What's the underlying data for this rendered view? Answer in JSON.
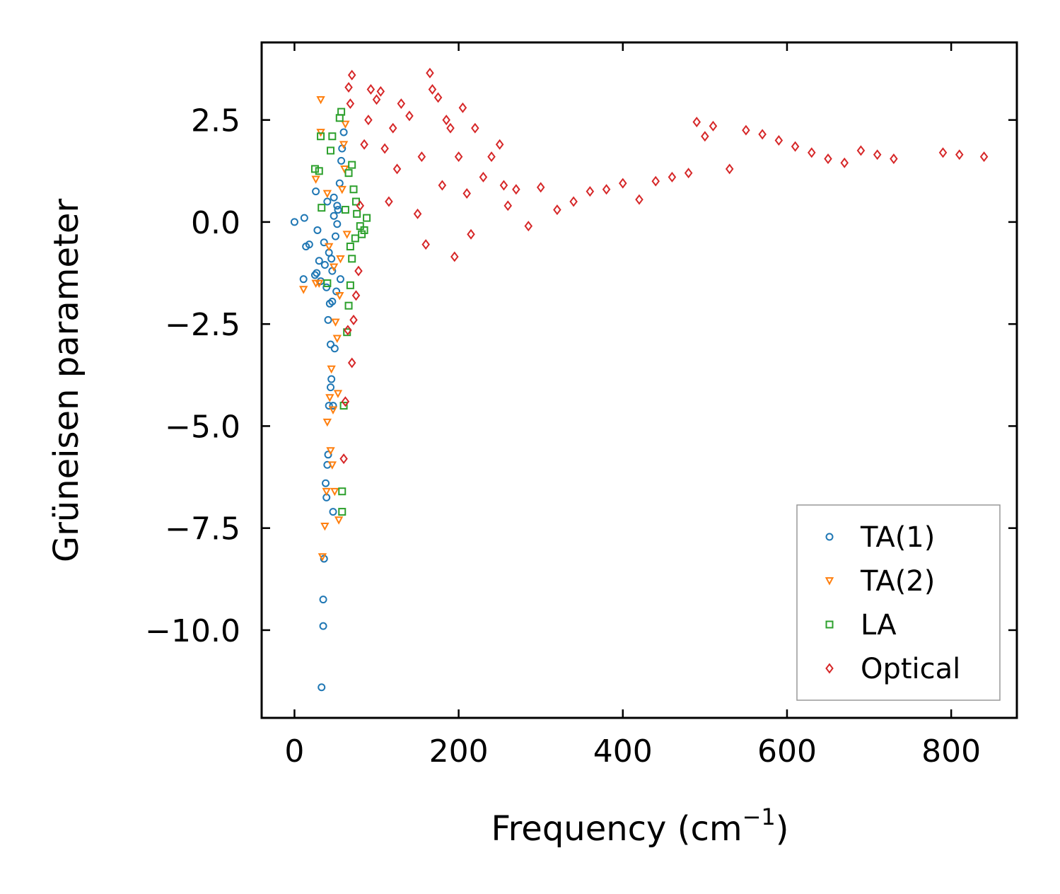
{
  "chart_data": {
    "type": "scatter",
    "title": "",
    "xlabel": "Frequency (cm",
    "xlabel_sup": "−1",
    "xlabel_suffix": ")",
    "ylabel": "Grüneisen parameter",
    "xlim": [
      -40,
      880
    ],
    "ylim": [
      -12.15,
      4.4
    ],
    "xticks": [
      0,
      200,
      400,
      600,
      800
    ],
    "xtick_labels": [
      "0",
      "200",
      "400",
      "600",
      "800"
    ],
    "yticks": [
      2.5,
      0.0,
      -2.5,
      -5.0,
      -7.5,
      -10.0
    ],
    "ytick_labels": [
      "2.5",
      "0.0",
      "−2.5",
      "−5.0",
      "−7.5",
      "−10.0"
    ],
    "grid": false,
    "legend_position": "lower-right",
    "series": [
      {
        "name": "TA(1)",
        "marker": "circle",
        "color": "#1f77b4",
        "points": [
          [
            0,
            0.0
          ],
          [
            12,
            0.1
          ],
          [
            14,
            -0.6
          ],
          [
            18,
            -0.55
          ],
          [
            26,
            0.75
          ],
          [
            27,
            -1.25
          ],
          [
            28,
            -0.2
          ],
          [
            30,
            -0.95
          ],
          [
            32,
            -1.45
          ],
          [
            33,
            -11.4
          ],
          [
            35,
            -9.9
          ],
          [
            35,
            -9.25
          ],
          [
            36,
            -8.25
          ],
          [
            36,
            -0.5
          ],
          [
            37,
            -1.05
          ],
          [
            38,
            -6.4
          ],
          [
            39,
            -6.75
          ],
          [
            39,
            -1.6
          ],
          [
            40,
            -5.95
          ],
          [
            40,
            0.5
          ],
          [
            41,
            -2.4
          ],
          [
            41,
            -5.7
          ],
          [
            42,
            -4.5
          ],
          [
            42,
            -0.75
          ],
          [
            44,
            -4.05
          ],
          [
            44,
            -3.0
          ],
          [
            45,
            -3.85
          ],
          [
            45,
            -0.9
          ],
          [
            46,
            -1.95
          ],
          [
            47,
            -7.1
          ],
          [
            47,
            -4.5
          ],
          [
            48,
            0.15
          ],
          [
            49,
            -3.1
          ],
          [
            50,
            -0.35
          ],
          [
            51,
            -1.7
          ],
          [
            52,
            -0.05
          ],
          [
            53,
            0.3
          ],
          [
            55,
            0.95
          ],
          [
            56,
            -1.4
          ],
          [
            57,
            1.5
          ],
          [
            58,
            1.8
          ],
          [
            60,
            2.2
          ],
          [
            11,
            -1.4
          ],
          [
            25,
            -1.3
          ],
          [
            43,
            -2.0
          ],
          [
            46,
            -1.2
          ],
          [
            48,
            0.6
          ],
          [
            52,
            0.4
          ]
        ]
      },
      {
        "name": "TA(2)",
        "marker": "triangle-down",
        "color": "#ff7f0e",
        "points": [
          [
            32,
            3.0
          ],
          [
            32,
            2.2
          ],
          [
            40,
            0.7
          ],
          [
            11,
            -1.65
          ],
          [
            26,
            1.05
          ],
          [
            26,
            -1.5
          ],
          [
            34,
            -8.2
          ],
          [
            37,
            -7.45
          ],
          [
            39,
            -6.6
          ],
          [
            40,
            -4.9
          ],
          [
            43,
            -4.3
          ],
          [
            44,
            -5.6
          ],
          [
            45,
            -3.6
          ],
          [
            46,
            -5.95
          ],
          [
            47,
            -4.6
          ],
          [
            49,
            -6.6
          ],
          [
            50,
            -2.45
          ],
          [
            52,
            -2.85
          ],
          [
            53,
            -4.2
          ],
          [
            54,
            -7.3
          ],
          [
            56,
            -0.9
          ],
          [
            58,
            0.8
          ],
          [
            60,
            1.9
          ],
          [
            62,
            2.4
          ],
          [
            64,
            -0.3
          ],
          [
            30,
            -1.5
          ],
          [
            42,
            -0.6
          ],
          [
            48,
            -1.1
          ],
          [
            55,
            -1.8
          ],
          [
            61,
            1.3
          ]
        ]
      },
      {
        "name": "LA",
        "marker": "square",
        "color": "#2ca02c",
        "points": [
          [
            32,
            2.1
          ],
          [
            25,
            1.3
          ],
          [
            30,
            1.25
          ],
          [
            33,
            0.35
          ],
          [
            40,
            -1.5
          ],
          [
            44,
            1.75
          ],
          [
            46,
            2.1
          ],
          [
            55,
            2.55
          ],
          [
            57,
            2.7
          ],
          [
            58,
            -6.6
          ],
          [
            58,
            -7.1
          ],
          [
            60,
            -4.5
          ],
          [
            64,
            -2.7
          ],
          [
            66,
            -2.05
          ],
          [
            68,
            -1.55
          ],
          [
            70,
            -0.9
          ],
          [
            72,
            0.8
          ],
          [
            74,
            -0.4
          ],
          [
            76,
            0.2
          ],
          [
            80,
            -0.1
          ],
          [
            85,
            -0.2
          ],
          [
            88,
            0.1
          ],
          [
            66,
            1.2
          ],
          [
            70,
            1.4
          ],
          [
            62,
            0.3
          ],
          [
            68,
            -0.6
          ],
          [
            75,
            0.5
          ],
          [
            82,
            -0.3
          ]
        ]
      },
      {
        "name": "Optical",
        "marker": "diamond",
        "color": "#d62728",
        "points": [
          [
            60,
            -5.8
          ],
          [
            62,
            -4.4
          ],
          [
            65,
            -2.65
          ],
          [
            70,
            -3.45
          ],
          [
            72,
            -2.4
          ],
          [
            70,
            3.6
          ],
          [
            66,
            3.3
          ],
          [
            68,
            2.9
          ],
          [
            75,
            -1.8
          ],
          [
            78,
            -1.2
          ],
          [
            80,
            0.4
          ],
          [
            85,
            1.9
          ],
          [
            90,
            2.5
          ],
          [
            93,
            3.25
          ],
          [
            100,
            3.0
          ],
          [
            105,
            3.2
          ],
          [
            110,
            1.8
          ],
          [
            115,
            0.5
          ],
          [
            120,
            2.3
          ],
          [
            125,
            1.3
          ],
          [
            130,
            2.9
          ],
          [
            140,
            2.6
          ],
          [
            150,
            0.2
          ],
          [
            155,
            1.6
          ],
          [
            160,
            -0.55
          ],
          [
            165,
            3.65
          ],
          [
            168,
            3.25
          ],
          [
            175,
            3.05
          ],
          [
            180,
            0.9
          ],
          [
            185,
            2.5
          ],
          [
            190,
            2.3
          ],
          [
            195,
            -0.85
          ],
          [
            200,
            1.6
          ],
          [
            205,
            2.8
          ],
          [
            210,
            0.7
          ],
          [
            215,
            -0.3
          ],
          [
            220,
            2.3
          ],
          [
            230,
            1.1
          ],
          [
            240,
            1.6
          ],
          [
            250,
            1.9
          ],
          [
            255,
            0.9
          ],
          [
            260,
            0.4
          ],
          [
            270,
            0.8
          ],
          [
            285,
            -0.1
          ],
          [
            300,
            0.85
          ],
          [
            320,
            0.3
          ],
          [
            340,
            0.5
          ],
          [
            360,
            0.75
          ],
          [
            380,
            0.8
          ],
          [
            400,
            0.95
          ],
          [
            420,
            0.55
          ],
          [
            440,
            1.0
          ],
          [
            460,
            1.1
          ],
          [
            480,
            1.2
          ],
          [
            490,
            2.45
          ],
          [
            500,
            2.1
          ],
          [
            510,
            2.35
          ],
          [
            530,
            1.3
          ],
          [
            550,
            2.25
          ],
          [
            570,
            2.15
          ],
          [
            590,
            2.0
          ],
          [
            610,
            1.85
          ],
          [
            630,
            1.7
          ],
          [
            650,
            1.55
          ],
          [
            670,
            1.45
          ],
          [
            690,
            1.75
          ],
          [
            710,
            1.65
          ],
          [
            730,
            1.55
          ],
          [
            790,
            1.7
          ],
          [
            810,
            1.65
          ],
          [
            840,
            1.6
          ]
        ]
      }
    ]
  }
}
